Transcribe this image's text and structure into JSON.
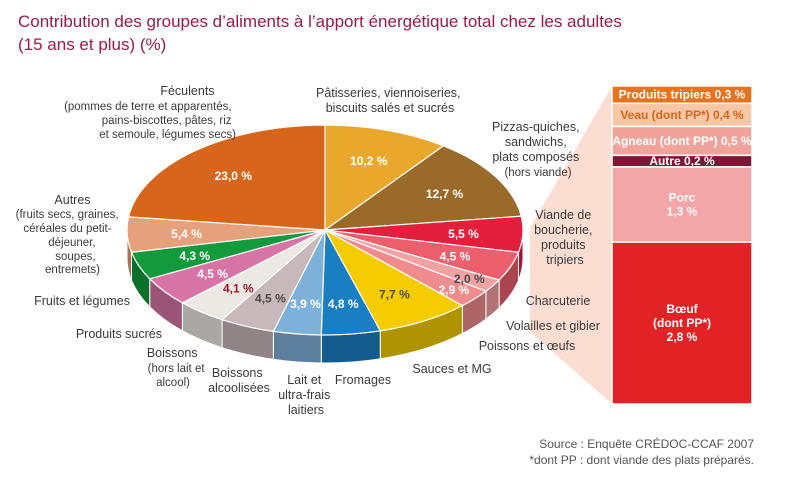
{
  "title": {
    "line1": "Contribution des groupes d’aliments à l’apport énergétique total chez les adultes",
    "line2": "(15 ans et plus) (%)"
  },
  "source": {
    "line1": "Source : Enquête CRÉDOC-CCAF 2007",
    "line2": "*dont PP : dont viande des plats préparés."
  },
  "chart_data": [
    {
      "type": "pie",
      "slices": [
        {
          "name": "Pâtisseries, viennoiseries, biscuits salés et sucrés",
          "value": 10.2,
          "label": "10,2 %",
          "color": "#e9a82b"
        },
        {
          "name": "Pizzas-quiches, sandwichs, plats composés (hors viande)",
          "value": 12.7,
          "label": "12,7 %",
          "color": "#9a6a28"
        },
        {
          "name": "Viande de boucherie, produits tripiers",
          "value": 5.5,
          "label": "5,5 %",
          "color": "#e31f3d"
        },
        {
          "name": "Charcuterie",
          "value": 4.5,
          "label": "4,5 %",
          "color": "#ee5f6d"
        },
        {
          "name": "Volailles et gibier",
          "value": 2.0,
          "label": "2,0 %",
          "color": "#f3a2a3"
        },
        {
          "name": "Poissons et œufs",
          "value": 2.9,
          "label": "2,9 %",
          "color": "#f08c8c"
        },
        {
          "name": "Sauces et MG",
          "value": 7.7,
          "label": "7,7 %",
          "color": "#f4cc00"
        },
        {
          "name": "Fromages",
          "value": 4.8,
          "label": "4,8 %",
          "color": "#1a7ec3"
        },
        {
          "name": "Lait et ultra-frais laitiers",
          "value": 3.9,
          "label": "3,9 %",
          "color": "#7eb1d9"
        },
        {
          "name": "Boissons alcoolisées",
          "value": 4.5,
          "label": "4,5 %",
          "color": "#c8b7bb"
        },
        {
          "name": "Boissons (hors lait et alcool)",
          "value": 4.1,
          "label": "4,1 %",
          "color": "#ece8e4"
        },
        {
          "name": "Produits sucrés",
          "value": 4.5,
          "label": "4,5 %",
          "color": "#d873a6"
        },
        {
          "name": "Fruits et légumes",
          "value": 4.3,
          "label": "4,3 %",
          "color": "#129a3d"
        },
        {
          "name": "Autres (fruits secs, graines, céréales du petit-déjeuner, soupes, entremets)",
          "value": 5.4,
          "label": "5,4 %",
          "color": "#e7a07c"
        },
        {
          "name": "Féculents (pommes de terre et apparentés, pains-biscottes, pâtes, riz et semoule, légumes secs)",
          "value": 23.0,
          "label": "23,0 %",
          "color": "#d7661c"
        }
      ],
      "annotations": [
        {
          "id": "feculents",
          "title": "Féculents",
          "lines": [
            "(pommes de terre et apparentés,",
            "pains-biscottes, pâtes, riz",
            "et semoule, légumes secs)"
          ]
        },
        {
          "id": "autres",
          "title": "Autres",
          "lines": [
            "(fruits secs, graines,",
            "céréales du petit-",
            "déjeuner,",
            "soupes,",
            "entremets)"
          ]
        },
        {
          "id": "fruits",
          "title": "Fruits et légumes",
          "lines": []
        },
        {
          "id": "sucres",
          "title": "Produits sucrés",
          "lines": []
        },
        {
          "id": "boissons",
          "title": "Boissons",
          "lines": [
            "(hors lait et",
            "alcool)"
          ]
        },
        {
          "id": "alcool",
          "title": "Boissons alcoolisées",
          "lines": []
        },
        {
          "id": "lait",
          "title": "Lait et ultra-frais laitiers",
          "lines": []
        },
        {
          "id": "fromages",
          "title": "Fromages",
          "lines": []
        },
        {
          "id": "sauces",
          "title": "Sauces et MG",
          "lines": []
        },
        {
          "id": "poissons",
          "title": "Poissons et œufs",
          "lines": []
        },
        {
          "id": "volailles",
          "title": "Volailles et gibier",
          "lines": []
        },
        {
          "id": "charcuterie",
          "title": "Charcuterie",
          "lines": []
        },
        {
          "id": "viande",
          "title": "Viande de boucherie, produits tripiers",
          "lines": []
        },
        {
          "id": "pizzas",
          "title": "Pizzas-quiches, sandwichs, plats composés",
          "lines": [
            "(hors viande)"
          ]
        },
        {
          "id": "patisseries",
          "title": "Pâtisseries, viennoiseries, biscuits salés et sucrés",
          "lines": []
        }
      ]
    },
    {
      "type": "bar",
      "stacked": true,
      "breakdown_of": "Viande de boucherie, produits tripiers",
      "segments": [
        {
          "name": "Produits tripiers",
          "value": 0.3,
          "label": "0,3 %",
          "color": "#e8721d"
        },
        {
          "name": "Veau (dont PP*)",
          "value": 0.4,
          "label": "0,4 %",
          "color": "#f7c7a6"
        },
        {
          "name": "Agneau (dont PP*)",
          "value": 0.5,
          "label": "0,5 %",
          "color": "#f0a39a"
        },
        {
          "name": "Autre",
          "value": 0.2,
          "label": "0,2 %",
          "color": "#7e1734"
        },
        {
          "name": "Porc",
          "value": 1.3,
          "label": "1,3 %",
          "color": "#f2a6a8"
        },
        {
          "name": "Bœuf (dont PP*)",
          "value": 2.8,
          "label": "2,8 %",
          "color": "#e32226"
        }
      ]
    }
  ]
}
